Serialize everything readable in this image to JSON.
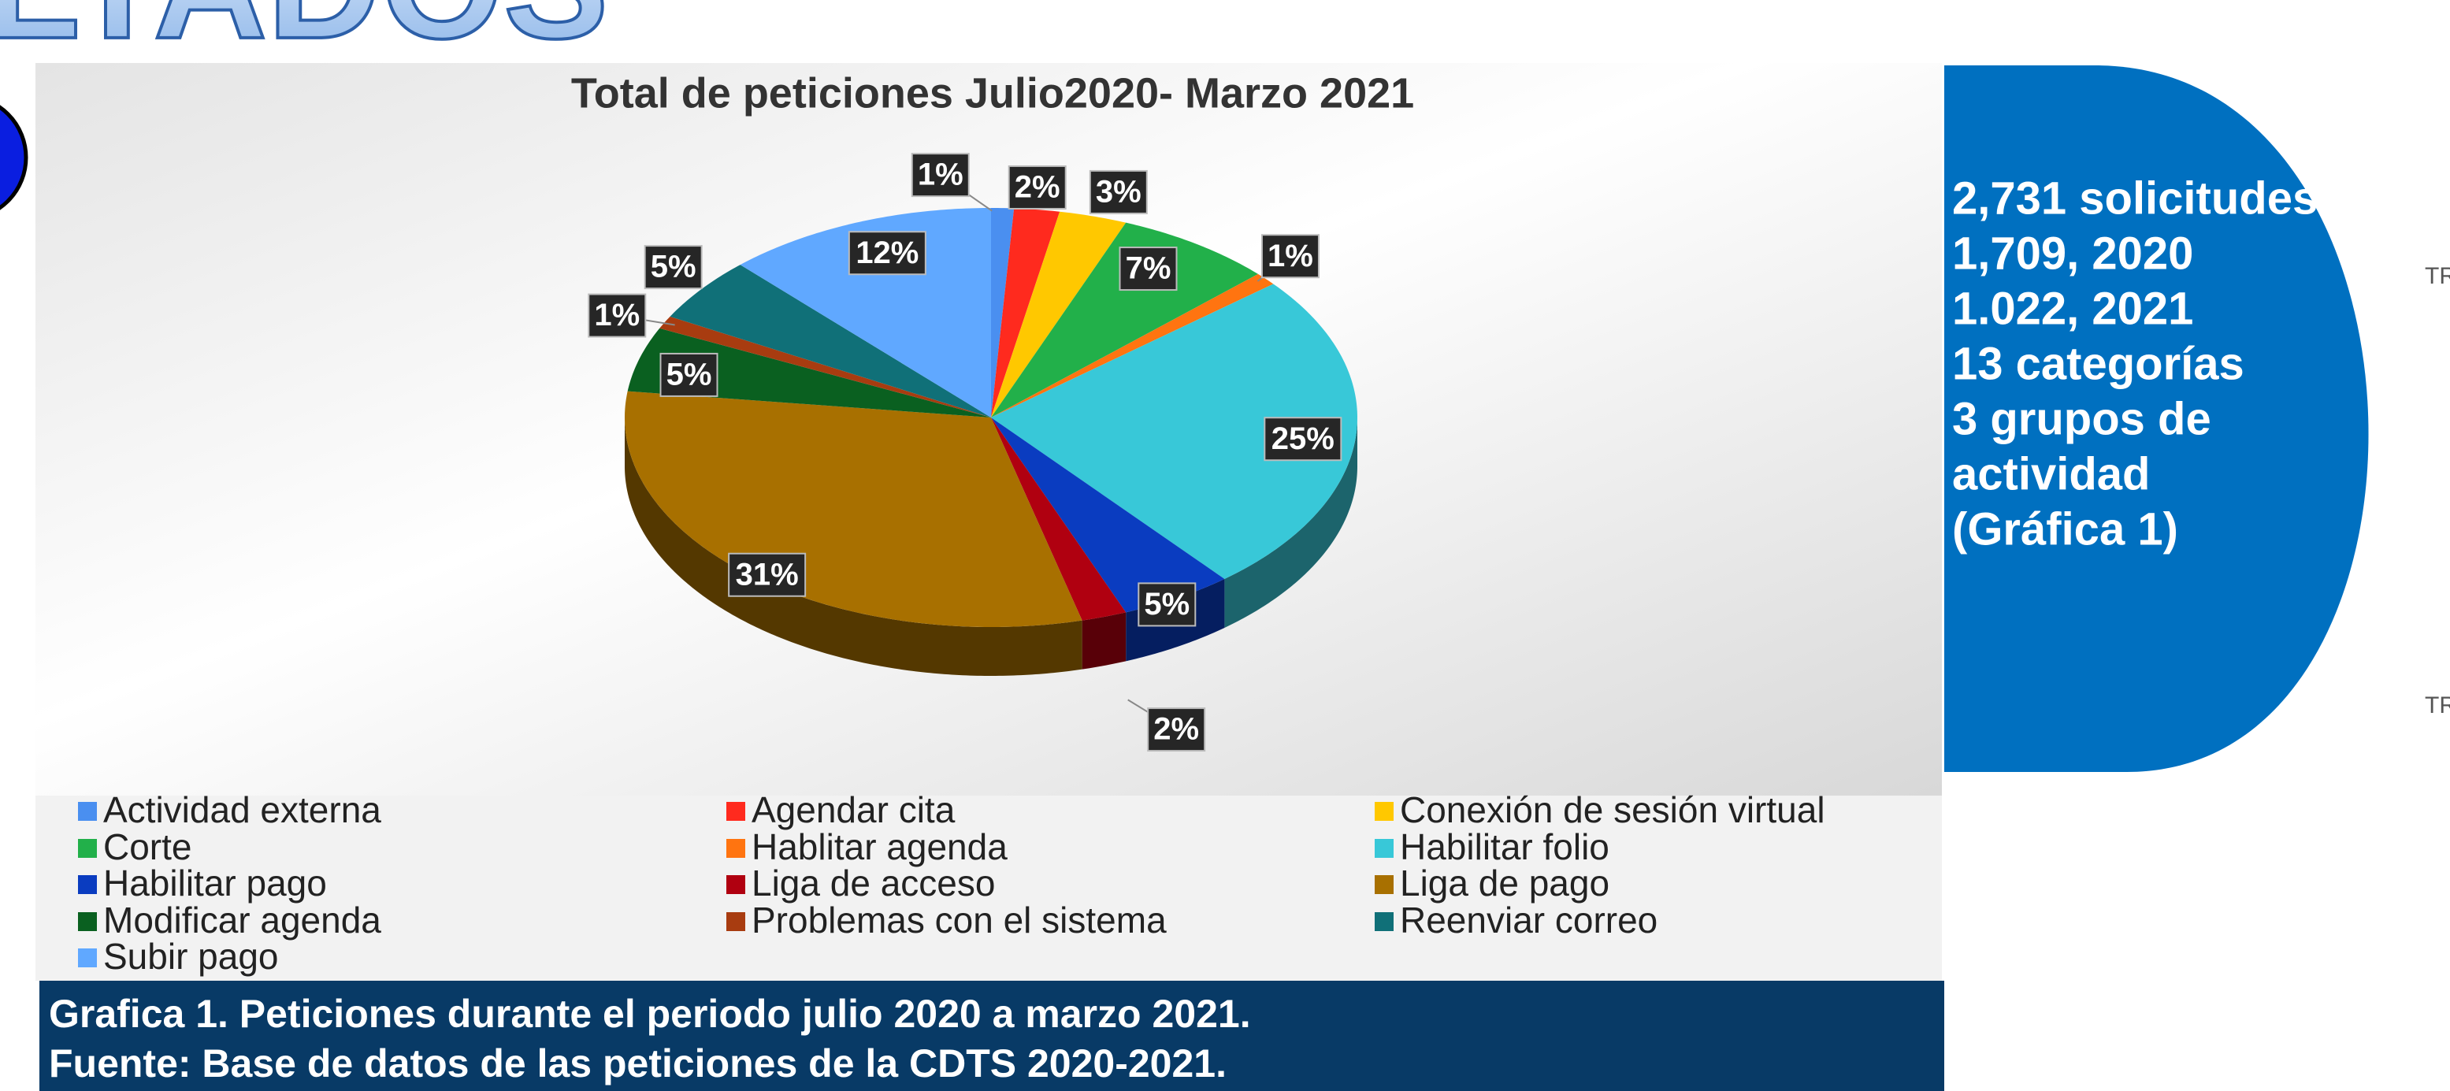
{
  "header": "LTADOS",
  "chart_data": {
    "type": "pie",
    "title": "Total de peticiones Julio2020- Marzo 2021",
    "categories": [
      "Actividad externa",
      "Agendar cita",
      "Conexión de sesión virtual",
      "Corte",
      "Hablitar agenda",
      "Habilitar folio",
      "Habilitar pago",
      "Liga de acceso",
      "Liga de pago",
      "Modificar agenda",
      "Problemas con el sistema",
      "Reenviar correo",
      "Subir pago"
    ],
    "values": [
      1,
      2,
      3,
      7,
      1,
      25,
      5,
      2,
      31,
      5,
      1,
      5,
      12
    ],
    "value_labels": [
      "1%",
      "2%",
      "3%",
      "7%",
      "1%",
      "25%",
      "5%",
      "2%",
      "31%",
      "5%",
      "1%",
      "5%",
      "12%"
    ],
    "colors": [
      "#4a8ff0",
      "#ff2a1e",
      "#ffc800",
      "#22b04a",
      "#ff7410",
      "#38c8d8",
      "#0a3cc0",
      "#b00010",
      "#a87000",
      "#0a6020",
      "#a83c10",
      "#107078",
      "#60a8ff"
    ]
  },
  "panel": {
    "lines": [
      "2,731 solicitudes",
      "1,709, 2020",
      "1.022, 2021",
      "13 categorías",
      "3 grupos  de",
      "actividad",
      "(Gráfica 1)"
    ]
  },
  "caption": {
    "lines": [
      "Grafica 1. Peticiones durante el periodo julio 2020 a marzo 2021.",
      "Fuente: Base de datos de las peticiones de la CDTS 2020-2021."
    ]
  },
  "side_labels": [
    "TR",
    "TR"
  ]
}
